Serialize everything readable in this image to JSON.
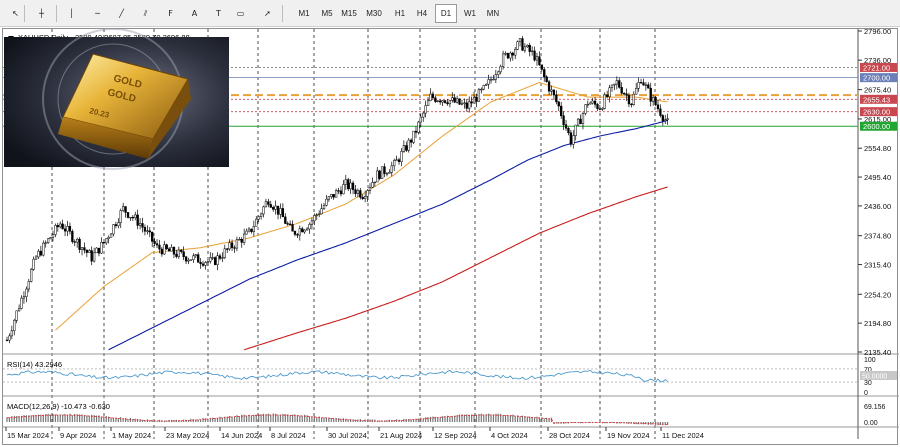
{
  "toolbar": {
    "tools": [
      {
        "name": "cursor-arrow-icon",
        "glyph": "↖"
      },
      {
        "name": "crosshair-icon",
        "glyph": "┼"
      },
      {
        "name": "vertical-line-icon",
        "glyph": "│"
      },
      {
        "name": "horizontal-line-icon",
        "glyph": "─"
      },
      {
        "name": "trendline-icon",
        "glyph": "╱"
      },
      {
        "name": "equidistant-channel-icon",
        "glyph": "⫽"
      },
      {
        "name": "fibonacci-icon",
        "glyph": "F"
      },
      {
        "name": "text-tool-icon",
        "glyph": "A"
      },
      {
        "name": "text-label-icon",
        "glyph": "T"
      },
      {
        "name": "rectangle-label-icon",
        "glyph": "▭"
      },
      {
        "name": "arrows-icon",
        "glyph": "➚"
      }
    ],
    "timeframes": [
      "M1",
      "M5",
      "M15",
      "M30",
      "H1",
      "H4",
      "D1",
      "W1",
      "MN"
    ],
    "active_timeframe": "D1"
  },
  "chart": {
    "header_symbol": "XAUUSD,Daily",
    "header_ohlc": "2590.40 2607.85 2589.70 2606.88",
    "watermark_text_1": "GOLD",
    "watermark_text_2": "GOLD",
    "watermark_text_3": "20.23"
  },
  "colors": {
    "candle": "#000000",
    "ma_fast": "#e8a135",
    "ma_mid": "#0b1ea3",
    "ma_slow": "#c81e1e",
    "level_red": "#c9484f",
    "level_gray": "#7f7f7f",
    "level_blue": "#6b7fb8",
    "level_green": "#22a632",
    "level_orange": "#e8a135",
    "rsi_line": "#3b8fc8",
    "macd_signal": "#e0222a"
  },
  "chart_data": {
    "type": "candlestick",
    "symbol": "XAUUSD",
    "timeframe": "Daily",
    "y_ticks": [
      "2796.00",
      "2736.00",
      "2675.40",
      "2615.00",
      "2554.80",
      "2495.40",
      "2436.00",
      "2374.80",
      "2315.40",
      "2254.20",
      "2194.80",
      "2135.40"
    ],
    "ylim": [
      2135.4,
      2796.0
    ],
    "x_labels": [
      "15 Mar 2024",
      "9 Apr 2024",
      "1 May 2024",
      "23 May 2024",
      "14 Jun 2024",
      "8 Jul 2024",
      "30 Jul 2024",
      "21 Aug 2024",
      "12 Sep 2024",
      "4 Oct 2024",
      "28 Oct 2024",
      "19 Nov 2024",
      "11 Dec 2024"
    ],
    "price_labels": [
      {
        "value": 2721.0,
        "text": "2721.00",
        "color": "#c9484f"
      },
      {
        "value": 2700.0,
        "text": "2700.00",
        "color": "#6b7fb8"
      },
      {
        "value": 2655.43,
        "text": "2655.43",
        "color": "#c9484f"
      },
      {
        "value": 2630.0,
        "text": "2630.00",
        "color": "#c9484f"
      },
      {
        "value": 2600.0,
        "text": "2600.00",
        "color": "#22a632"
      }
    ],
    "closes_anchors": [
      [
        0,
        2160
      ],
      [
        12,
        2330
      ],
      [
        22,
        2400
      ],
      [
        35,
        2330
      ],
      [
        40,
        2360
      ],
      [
        48,
        2430
      ],
      [
        55,
        2400
      ],
      [
        62,
        2350
      ],
      [
        75,
        2330
      ],
      [
        85,
        2320
      ],
      [
        92,
        2350
      ],
      [
        100,
        2380
      ],
      [
        108,
        2450
      ],
      [
        113,
        2420
      ],
      [
        118,
        2380
      ],
      [
        125,
        2400
      ],
      [
        133,
        2450
      ],
      [
        140,
        2480
      ],
      [
        147,
        2460
      ],
      [
        153,
        2500
      ],
      [
        160,
        2520
      ],
      [
        168,
        2580
      ],
      [
        175,
        2660
      ],
      [
        182,
        2655
      ],
      [
        190,
        2640
      ],
      [
        198,
        2680
      ],
      [
        205,
        2740
      ],
      [
        212,
        2770
      ],
      [
        218,
        2745
      ],
      [
        222,
        2700
      ],
      [
        228,
        2640
      ],
      [
        233,
        2570
      ],
      [
        240,
        2650
      ],
      [
        245,
        2640
      ],
      [
        252,
        2690
      ],
      [
        258,
        2650
      ],
      [
        262,
        2700
      ],
      [
        266,
        2660
      ],
      [
        270,
        2630
      ],
      [
        273,
        2606
      ]
    ],
    "ma_fast_anchors": [
      [
        20,
        2180
      ],
      [
        40,
        2270
      ],
      [
        60,
        2340
      ],
      [
        80,
        2350
      ],
      [
        100,
        2370
      ],
      [
        120,
        2400
      ],
      [
        140,
        2440
      ],
      [
        160,
        2500
      ],
      [
        180,
        2580
      ],
      [
        200,
        2650
      ],
      [
        220,
        2690
      ],
      [
        240,
        2660
      ],
      [
        260,
        2660
      ],
      [
        273,
        2650
      ]
    ],
    "ma_mid_anchors": [
      [
        42,
        2140
      ],
      [
        60,
        2185
      ],
      [
        80,
        2235
      ],
      [
        100,
        2285
      ],
      [
        120,
        2325
      ],
      [
        140,
        2360
      ],
      [
        160,
        2400
      ],
      [
        180,
        2440
      ],
      [
        200,
        2490
      ],
      [
        215,
        2530
      ],
      [
        230,
        2560
      ],
      [
        245,
        2580
      ],
      [
        260,
        2595
      ],
      [
        273,
        2612
      ]
    ],
    "ma_slow_anchors": [
      [
        98,
        2140
      ],
      [
        120,
        2175
      ],
      [
        140,
        2205
      ],
      [
        160,
        2240
      ],
      [
        180,
        2280
      ],
      [
        200,
        2330
      ],
      [
        220,
        2380
      ],
      [
        240,
        2420
      ],
      [
        260,
        2455
      ],
      [
        273,
        2475
      ]
    ],
    "rsi": {
      "label": "RSI(14) 43.2946",
      "levels": [
        "100",
        "70",
        "30",
        "0"
      ],
      "marker_value": "50.0000"
    },
    "macd": {
      "label": "MACD(12,26,9) -10.473 -0.630",
      "levels": [
        "69.156",
        "0.00"
      ]
    }
  }
}
